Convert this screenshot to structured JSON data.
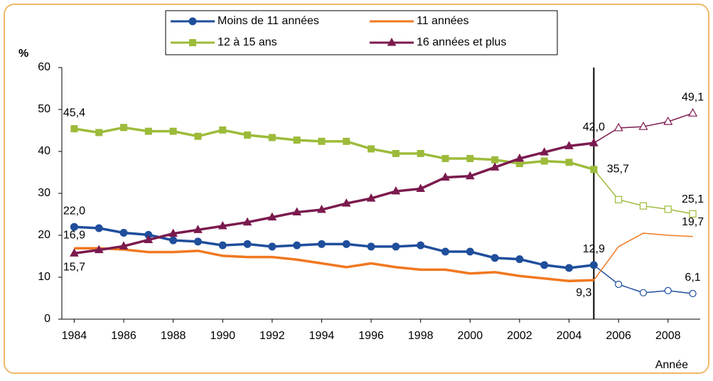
{
  "chart_data": {
    "type": "line",
    "y_label": "%",
    "x_label": "Année",
    "x": [
      1984,
      1985,
      1986,
      1987,
      1988,
      1989,
      1990,
      1991,
      1992,
      1993,
      1994,
      1995,
      1996,
      1997,
      1998,
      1999,
      2000,
      2001,
      2002,
      2003,
      2004,
      2005,
      2006,
      2007,
      2008,
      2009
    ],
    "xlim": [
      1983.5,
      2009.3
    ],
    "xticks": [
      1984,
      1986,
      1988,
      1990,
      1992,
      1994,
      1996,
      1998,
      2000,
      2002,
      2004,
      2006,
      2008
    ],
    "ylim": [
      0,
      60
    ],
    "yticks": [
      0,
      10,
      20,
      30,
      40,
      50,
      60
    ],
    "projection_from": 2005,
    "series": [
      {
        "name": "Moins de 11 années",
        "color": "#1f4e9c",
        "marker": "circle",
        "values": [
          22.0,
          21.7,
          20.6,
          20.1,
          18.8,
          18.5,
          17.6,
          17.9,
          17.3,
          17.6,
          17.9,
          17.9,
          17.3,
          17.3,
          17.6,
          16.1,
          16.1,
          14.6,
          14.3,
          12.9,
          12.2,
          12.9,
          8.3,
          6.3,
          6.8,
          6.1
        ],
        "value_labels": [
          "22,0",
          null,
          null,
          null,
          null,
          null,
          null,
          null,
          null,
          null,
          null,
          null,
          null,
          null,
          null,
          null,
          null,
          null,
          null,
          null,
          null,
          "12,9",
          null,
          null,
          null,
          "6,1"
        ]
      },
      {
        "name": "11 années",
        "color": "#f07820",
        "marker": "none",
        "values": [
          16.9,
          16.9,
          16.6,
          16.0,
          16.0,
          16.3,
          15.1,
          14.8,
          14.8,
          14.2,
          13.3,
          12.4,
          13.3,
          12.4,
          11.8,
          11.8,
          10.9,
          11.2,
          10.3,
          9.7,
          9.1,
          9.3,
          17.3,
          20.5,
          20.0,
          19.7
        ],
        "value_labels": [
          "16,9",
          null,
          null,
          null,
          null,
          null,
          null,
          null,
          null,
          null,
          null,
          null,
          null,
          null,
          null,
          null,
          null,
          null,
          null,
          null,
          null,
          "9,3",
          null,
          null,
          null,
          "19,7"
        ]
      },
      {
        "name": "12 à 15 ans",
        "color": "#9cbb3a",
        "marker": "square",
        "values": [
          45.4,
          44.5,
          45.7,
          44.8,
          44.8,
          43.6,
          45.1,
          43.9,
          43.3,
          42.7,
          42.4,
          42.4,
          40.6,
          39.5,
          39.5,
          38.3,
          38.3,
          38.0,
          37.1,
          37.7,
          37.4,
          35.7,
          28.5,
          27.0,
          26.2,
          25.1
        ],
        "value_labels": [
          "45,4",
          null,
          null,
          null,
          null,
          null,
          null,
          null,
          null,
          null,
          null,
          null,
          null,
          null,
          null,
          null,
          null,
          null,
          null,
          null,
          null,
          "35,7",
          null,
          null,
          null,
          "25,1"
        ]
      },
      {
        "name": "16 années et plus",
        "color": "#7b1a4e",
        "marker": "triangle",
        "values": [
          15.7,
          16.5,
          17.4,
          18.9,
          20.4,
          21.3,
          22.2,
          23.1,
          24.3,
          25.5,
          26.1,
          27.6,
          28.8,
          30.5,
          31.1,
          33.8,
          34.1,
          36.2,
          38.3,
          39.8,
          41.3,
          42.0,
          45.6,
          45.9,
          47.1,
          49.1
        ],
        "value_labels": [
          "15,7",
          null,
          null,
          null,
          null,
          null,
          null,
          null,
          null,
          null,
          null,
          null,
          null,
          null,
          null,
          null,
          null,
          null,
          null,
          null,
          null,
          "42,0",
          null,
          null,
          null,
          "49,1"
        ]
      }
    ]
  }
}
